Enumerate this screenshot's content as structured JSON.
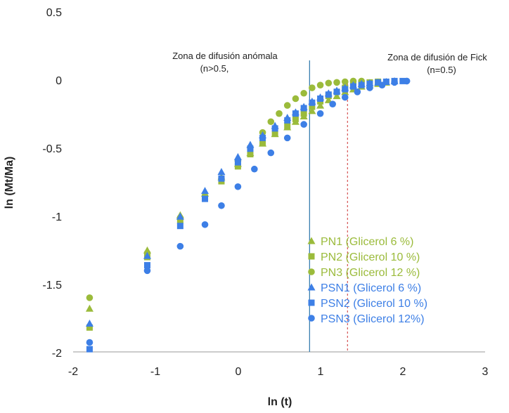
{
  "chart_data": {
    "type": "scatter",
    "xlabel": "ln (t)",
    "ylabel": "ln (Mt/Ma)",
    "xlim": [
      -2,
      3
    ],
    "ylim": [
      -2,
      0.5
    ],
    "x_ticks": [
      "-2",
      "-1",
      "0",
      "1",
      "2",
      "3"
    ],
    "y_ticks": [
      "0.5",
      "0",
      "-0.5",
      "-1",
      "-1.5",
      "-2"
    ],
    "colors": {
      "green": "#9bbb3b",
      "blue": "#3d7fe6",
      "anomalous_line": "#3a7fb0",
      "fick_line": "#cc3333"
    },
    "annotations": {
      "anomalous_zone": {
        "line1": "Zona de difusión anómala",
        "line2": "(n>0.5,",
        "x": 0.87
      },
      "fick_zone": {
        "line1": "Zona de difusión de Fick",
        "line2": "(n=0.5)",
        "x": 1.33
      }
    },
    "legend": [
      {
        "label": "PN1 (Glicerol 6 %)",
        "marker": "triangle",
        "color": "#9bbb3b"
      },
      {
        "label": "PN2 (Glicerol 10 %)",
        "marker": "square",
        "color": "#9bbb3b"
      },
      {
        "label": "PN3 (Glicerol 12 %)",
        "marker": "circle",
        "color": "#9bbb3b"
      },
      {
        "label": "PSN1 (Glicerol 6 %)",
        "marker": "triangle",
        "color": "#3d7fe6"
      },
      {
        "label": "PSN2 (Glicerol 10 %)",
        "marker": "square",
        "color": "#3d7fe6"
      },
      {
        "label": "PSN3 (Glicerol 12%)",
        "marker": "circle",
        "color": "#3d7fe6"
      }
    ],
    "series": [
      {
        "name": "PN1 (Glicerol 6 %)",
        "marker": "triangle",
        "color": "#9bbb3b",
        "x": [
          -1.8,
          -1.1,
          -0.7,
          -0.4,
          -0.2,
          0.0,
          0.15,
          0.3,
          0.45,
          0.6,
          0.7,
          0.8,
          0.9,
          1.0,
          1.1,
          1.2,
          1.3,
          1.4,
          1.5,
          1.6,
          1.7,
          1.8
        ],
        "y": [
          -1.68,
          -1.25,
          -0.99,
          -0.83,
          -0.71,
          -0.61,
          -0.53,
          -0.46,
          -0.39,
          -0.34,
          -0.3,
          -0.26,
          -0.22,
          -0.18,
          -0.14,
          -0.11,
          -0.08,
          -0.06,
          -0.04,
          -0.03,
          -0.02,
          -0.01
        ]
      },
      {
        "name": "PN2 (Glicerol 10 %)",
        "marker": "square",
        "color": "#9bbb3b",
        "x": [
          -1.8,
          -1.1,
          -0.7,
          -0.4,
          -0.2,
          0.0,
          0.15,
          0.3,
          0.45,
          0.6,
          0.7,
          0.8,
          0.9,
          1.0,
          1.1,
          1.2,
          1.3,
          1.4,
          1.5,
          1.6,
          1.7
        ],
        "y": [
          -1.82,
          -1.3,
          -1.03,
          -0.86,
          -0.74,
          -0.63,
          -0.54,
          -0.46,
          -0.39,
          -0.33,
          -0.28,
          -0.24,
          -0.19,
          -0.15,
          -0.11,
          -0.08,
          -0.05,
          -0.03,
          -0.02,
          -0.01,
          -0.005
        ]
      },
      {
        "name": "PN3 (Glicerol 12 %)",
        "marker": "circle",
        "color": "#9bbb3b",
        "x": [
          -1.8,
          -1.1,
          -0.7,
          -0.4,
          -0.2,
          0.0,
          0.15,
          0.3,
          0.4,
          0.5,
          0.6,
          0.7,
          0.8,
          0.9,
          1.0,
          1.1,
          1.2,
          1.3,
          1.4,
          1.5
        ],
        "y": [
          -1.6,
          -1.27,
          -1.01,
          -0.85,
          -0.72,
          -0.59,
          -0.49,
          -0.38,
          -0.3,
          -0.24,
          -0.18,
          -0.13,
          -0.09,
          -0.05,
          -0.03,
          -0.015,
          -0.01,
          -0.005,
          0.0,
          0.0
        ]
      },
      {
        "name": "PSN1 (Glicerol 6 %)",
        "marker": "triangle",
        "color": "#3d7fe6",
        "x": [
          -1.8,
          -1.1,
          -0.7,
          -0.4,
          -0.2,
          0.0,
          0.15,
          0.3,
          0.45,
          0.6,
          0.7,
          0.8,
          0.9,
          1.0,
          1.1,
          1.2,
          1.3,
          1.4,
          1.5,
          1.6,
          1.7,
          1.8,
          1.9
        ],
        "y": [
          -1.79,
          -1.29,
          -1.0,
          -0.81,
          -0.67,
          -0.56,
          -0.47,
          -0.4,
          -0.33,
          -0.27,
          -0.23,
          -0.19,
          -0.15,
          -0.12,
          -0.09,
          -0.07,
          -0.05,
          -0.03,
          -0.02,
          -0.015,
          -0.01,
          -0.005,
          0.0
        ]
      },
      {
        "name": "PSN2 (Glicerol 10 %)",
        "marker": "square",
        "color": "#3d7fe6",
        "x": [
          -1.8,
          -1.1,
          -0.7,
          -0.4,
          -0.2,
          0.0,
          0.15,
          0.3,
          0.45,
          0.6,
          0.7,
          0.8,
          0.9,
          1.0,
          1.1,
          1.2,
          1.3,
          1.4,
          1.5,
          1.6,
          1.7,
          1.8,
          1.9,
          2.0
        ],
        "y": [
          -1.98,
          -1.36,
          -1.07,
          -0.87,
          -0.72,
          -0.6,
          -0.5,
          -0.42,
          -0.35,
          -0.29,
          -0.24,
          -0.2,
          -0.16,
          -0.13,
          -0.1,
          -0.08,
          -0.06,
          -0.04,
          -0.03,
          -0.02,
          -0.01,
          -0.005,
          0.0,
          0.0
        ]
      },
      {
        "name": "PSN3 (Glicerol 12%)",
        "marker": "circle",
        "color": "#3d7fe6",
        "x": [
          -1.8,
          -1.1,
          -0.7,
          -0.4,
          -0.2,
          0.0,
          0.2,
          0.4,
          0.6,
          0.8,
          1.0,
          1.15,
          1.3,
          1.45,
          1.6,
          1.75,
          1.9,
          2.05
        ],
        "y": [
          -1.93,
          -1.4,
          -1.22,
          -1.06,
          -0.92,
          -0.78,
          -0.65,
          -0.53,
          -0.42,
          -0.32,
          -0.24,
          -0.17,
          -0.12,
          -0.08,
          -0.05,
          -0.03,
          -0.01,
          0.0
        ]
      }
    ]
  }
}
